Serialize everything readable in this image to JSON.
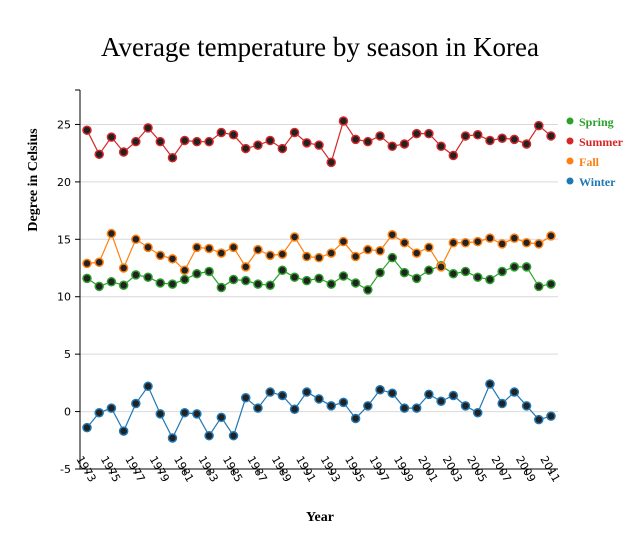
{
  "chart_data": {
    "type": "line",
    "title": "Average temperature by season in Korea",
    "xlabel": "Year",
    "ylabel": "Degree in Celsius",
    "xlim": [
      1973,
      2011
    ],
    "ylim": [
      -5,
      28
    ],
    "y_ticks": [
      -5,
      0,
      5,
      10,
      15,
      20,
      25
    ],
    "x_ticks": [
      1973,
      1975,
      1977,
      1979,
      1981,
      1983,
      1985,
      1987,
      1989,
      1991,
      1993,
      1995,
      1997,
      1999,
      2001,
      2003,
      2005,
      2007,
      2009,
      2011
    ],
    "grid": "horizontal",
    "legend_position": "right",
    "x": [
      1973,
      1974,
      1975,
      1976,
      1977,
      1978,
      1979,
      1980,
      1981,
      1982,
      1983,
      1984,
      1985,
      1986,
      1987,
      1988,
      1989,
      1990,
      1991,
      1992,
      1993,
      1994,
      1995,
      1996,
      1997,
      1998,
      1999,
      2000,
      2001,
      2002,
      2003,
      2004,
      2005,
      2006,
      2007,
      2008,
      2009,
      2010,
      2011
    ],
    "series": [
      {
        "name": "Spring",
        "color": "#2ca02c",
        "values": [
          11.6,
          10.9,
          11.3,
          11.0,
          11.9,
          11.7,
          11.2,
          11.1,
          11.5,
          12.0,
          12.2,
          10.8,
          11.5,
          11.4,
          11.1,
          11.0,
          12.3,
          11.7,
          11.4,
          11.6,
          11.1,
          11.8,
          11.2,
          10.6,
          12.1,
          13.4,
          12.1,
          11.6,
          12.3,
          12.7,
          12.0,
          12.2,
          11.7,
          11.5,
          12.2,
          12.6,
          12.6,
          10.9,
          11.1
        ]
      },
      {
        "name": "Summer",
        "color": "#d62728",
        "values": [
          24.5,
          22.4,
          23.9,
          22.6,
          23.5,
          24.7,
          23.5,
          22.1,
          23.6,
          23.5,
          23.5,
          24.3,
          24.1,
          22.9,
          23.2,
          23.6,
          22.9,
          24.3,
          23.4,
          23.2,
          21.7,
          25.3,
          23.7,
          23.5,
          24.0,
          23.1,
          23.3,
          24.2,
          24.2,
          23.1,
          22.3,
          24.0,
          24.1,
          23.6,
          23.8,
          23.7,
          23.3,
          24.9,
          24.0
        ]
      },
      {
        "name": "Fall",
        "color": "#ff7f0e",
        "values": [
          12.9,
          13.0,
          15.5,
          12.5,
          15.0,
          14.3,
          13.6,
          13.3,
          12.3,
          14.3,
          14.2,
          13.8,
          14.3,
          12.6,
          14.1,
          13.6,
          13.7,
          15.2,
          13.5,
          13.4,
          13.8,
          14.8,
          13.5,
          14.1,
          14.0,
          15.4,
          14.7,
          13.8,
          14.3,
          12.6,
          14.7,
          14.7,
          14.8,
          15.1,
          14.6,
          15.1,
          14.7,
          14.6,
          15.3
        ]
      },
      {
        "name": "Winter",
        "color": "#1f77b4",
        "values": [
          -1.4,
          -0.1,
          0.3,
          -1.7,
          0.7,
          2.2,
          -0.2,
          -2.3,
          -0.1,
          -0.2,
          -2.1,
          -0.5,
          -2.1,
          1.2,
          0.3,
          1.7,
          1.4,
          0.2,
          1.7,
          1.1,
          0.5,
          0.8,
          -0.6,
          0.5,
          1.9,
          1.6,
          0.3,
          0.3,
          1.5,
          0.9,
          1.4,
          0.5,
          -0.1,
          2.4,
          0.7,
          1.7,
          0.5,
          -0.7,
          -0.4
        ]
      }
    ]
  }
}
